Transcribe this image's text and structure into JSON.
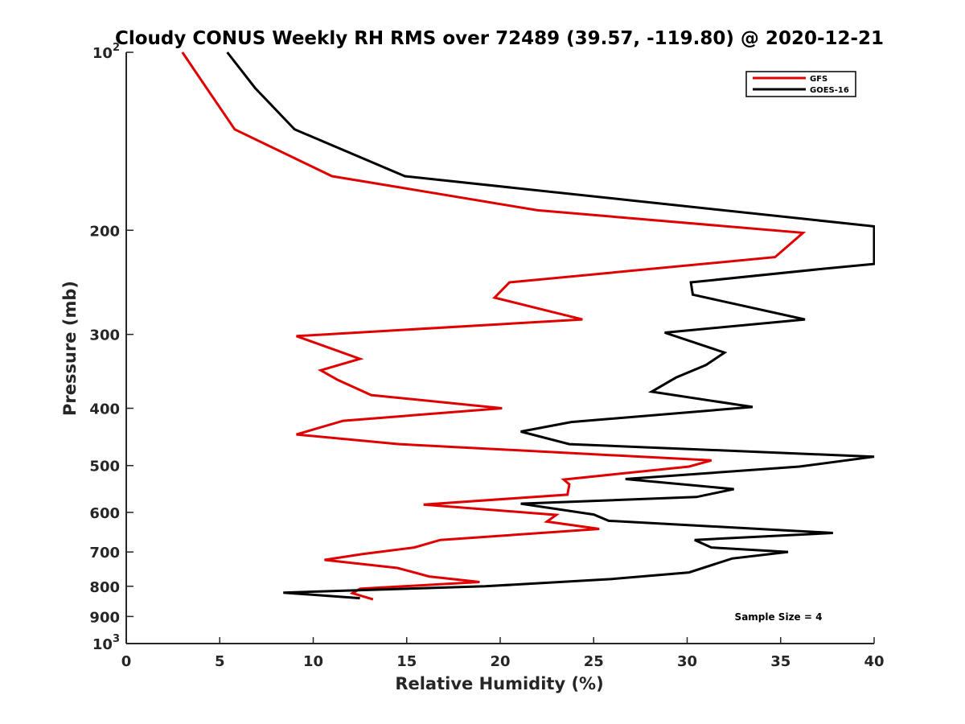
{
  "chart_data": {
    "type": "line",
    "title": "Cloudy CONUS Weekly RH RMS over 72489 (39.57, -119.80) @ 2020-12-21",
    "xlabel": "Relative Humidity (%)",
    "ylabel": "Pressure (mb)",
    "xlim": [
      0,
      40
    ],
    "ylim": [
      100,
      1000
    ],
    "yscale": "log",
    "y_inverted": true,
    "x_ticks": [
      "0",
      "5",
      "10",
      "15",
      "20",
      "25",
      "30",
      "35",
      "40"
    ],
    "y_ticks": [
      {
        "value": 100,
        "base": "10",
        "exp": "2"
      },
      {
        "value": 200,
        "label": "200"
      },
      {
        "value": 300,
        "label": "300"
      },
      {
        "value": 400,
        "label": "400"
      },
      {
        "value": 500,
        "label": "500"
      },
      {
        "value": 600,
        "label": "600"
      },
      {
        "value": 700,
        "label": "700"
      },
      {
        "value": 800,
        "label": "800"
      },
      {
        "value": 900,
        "label": "900"
      },
      {
        "value": 1000,
        "base": "10",
        "exp": "3"
      }
    ],
    "legend_position": "top-right",
    "annotation": "Sample Size = 4",
    "grid": false,
    "series": [
      {
        "name": "GFS",
        "color": "#e00000",
        "points": [
          [
            3.0,
            100
          ],
          [
            4.3,
            115
          ],
          [
            5.8,
            135
          ],
          [
            11.0,
            162
          ],
          [
            15.0,
            170
          ],
          [
            22.0,
            185
          ],
          [
            36.2,
            202
          ],
          [
            34.7,
            222
          ],
          [
            20.5,
            245
          ],
          [
            19.7,
            260
          ],
          [
            24.4,
            283
          ],
          [
            9.1,
            302
          ],
          [
            12.5,
            330
          ],
          [
            10.4,
            345
          ],
          [
            11.3,
            358
          ],
          [
            13.1,
            380
          ],
          [
            20.1,
            400
          ],
          [
            11.6,
            420
          ],
          [
            9.1,
            443
          ],
          [
            14.6,
            460
          ],
          [
            31.3,
            490
          ],
          [
            30.1,
            502
          ],
          [
            23.4,
            528
          ],
          [
            23.7,
            538
          ],
          [
            23.6,
            560
          ],
          [
            15.9,
            582
          ],
          [
            23.0,
            606
          ],
          [
            22.5,
            622
          ],
          [
            25.3,
            640
          ],
          [
            16.8,
            668
          ],
          [
            15.4,
            688
          ],
          [
            12.6,
            706
          ],
          [
            10.6,
            722
          ],
          [
            14.5,
            745
          ],
          [
            16.2,
            770
          ],
          [
            18.9,
            787
          ],
          [
            12.5,
            808
          ],
          [
            12.1,
            822
          ],
          [
            13.2,
            842
          ]
        ]
      },
      {
        "name": "GOES-16",
        "color": "#000000",
        "points": [
          [
            5.4,
            100
          ],
          [
            6.9,
            115
          ],
          [
            9.0,
            135
          ],
          [
            14.9,
            162
          ],
          [
            27.0,
            178
          ],
          [
            40.0,
            197
          ],
          [
            40.0,
            228
          ],
          [
            37.5,
            232
          ],
          [
            30.2,
            245
          ],
          [
            30.3,
            257
          ],
          [
            36.3,
            283
          ],
          [
            28.8,
            298
          ],
          [
            32.0,
            322
          ],
          [
            31.0,
            338
          ],
          [
            29.4,
            355
          ],
          [
            28.1,
            375
          ],
          [
            33.5,
            398
          ],
          [
            23.8,
            422
          ],
          [
            21.1,
            438
          ],
          [
            23.7,
            460
          ],
          [
            40.0,
            483
          ],
          [
            36.0,
            502
          ],
          [
            26.7,
            527
          ],
          [
            32.5,
            548
          ],
          [
            30.5,
            565
          ],
          [
            21.1,
            580
          ],
          [
            25.0,
            605
          ],
          [
            25.8,
            620
          ],
          [
            37.8,
            650
          ],
          [
            30.4,
            668
          ],
          [
            31.3,
            688
          ],
          [
            35.4,
            700
          ],
          [
            32.4,
            718
          ],
          [
            30.1,
            758
          ],
          [
            25.9,
            778
          ],
          [
            19.2,
            800
          ],
          [
            8.4,
            820
          ],
          [
            12.5,
            838
          ]
        ]
      }
    ]
  }
}
